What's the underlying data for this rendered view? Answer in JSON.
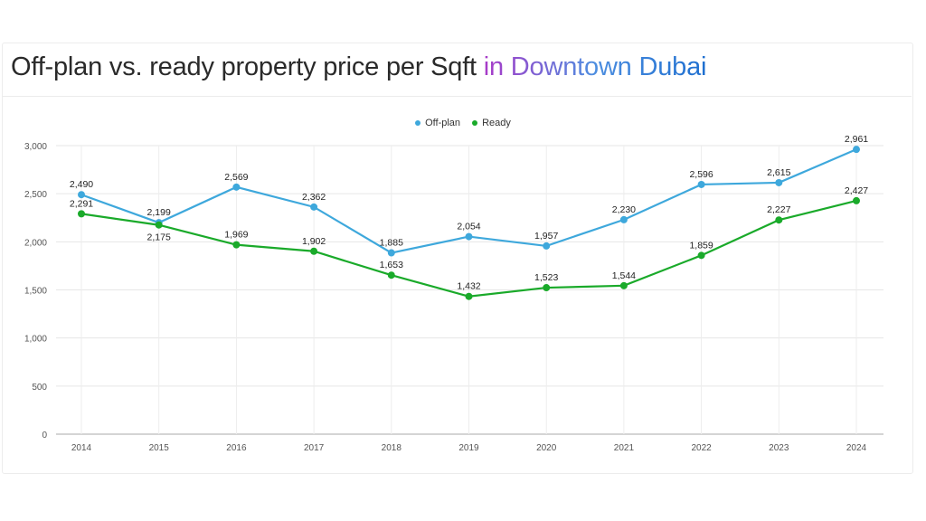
{
  "title": {
    "main": "Off-plan vs. ready property price per Sqft",
    "highlight": "in Downtown Dubai"
  },
  "chart_data": {
    "type": "line",
    "categories": [
      "2014",
      "2015",
      "2016",
      "2017",
      "2018",
      "2019",
      "2020",
      "2021",
      "2022",
      "2023",
      "2024"
    ],
    "series": [
      {
        "name": "Off-plan",
        "color": "#3ea8dc",
        "values": [
          2490,
          2199,
          2569,
          2362,
          1885,
          2054,
          1957,
          2230,
          2596,
          2615,
          2961
        ]
      },
      {
        "name": "Ready",
        "color": "#1aaa2a",
        "values": [
          2291,
          2175,
          1969,
          1902,
          1653,
          1432,
          1523,
          1544,
          1859,
          2227,
          2427
        ]
      }
    ],
    "ylim": [
      0,
      3000
    ],
    "yticks": [
      0,
      500,
      1000,
      1500,
      2000,
      2500,
      3000
    ],
    "grid": true,
    "legend": "top-center",
    "xlabel": "",
    "ylabel": ""
  }
}
